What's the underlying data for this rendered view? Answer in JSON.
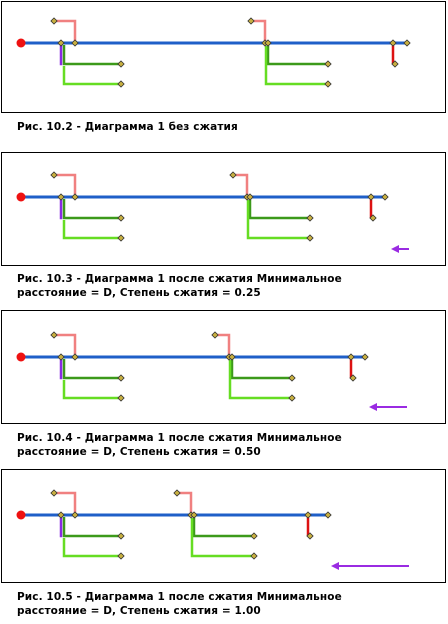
{
  "figures": [
    {
      "caption": "Рис. 10.2 - Диаграмма 1 без сжатия",
      "caption_lines": [
        "Рис. 10.2 - Диаграмма 1 без сжатия"
      ],
      "ratio": 0,
      "arrow": false
    },
    {
      "caption": "Рис. 10.3 - Диаграмма 1 после сжатия Минимальное расстояние = D, Степень сжатия = 0.25",
      "caption_lines": [
        "Рис. 10.3 - Диаграмма 1 после сжатия Минимальное",
        "расстояние = D, Степень сжатия = 0.25"
      ],
      "ratio": 0.25,
      "arrow": true
    },
    {
      "caption": "Рис. 10.4 - Диаграмма 1 после сжатия Минимальное расстояние = D, Степень сжатия = 0.50",
      "caption_lines": [
        "Рис. 10.4 - Диаграмма 1 после сжатия Минимальное",
        "расстояние = D, Степень сжатия = 0.50"
      ],
      "ratio": 0.5,
      "arrow": true
    },
    {
      "caption": "Рис. 10.5 - Диаграмма 1 после сжатия Минимальное расстояние = D, Степень сжатия = 1.00",
      "caption_lines": [
        "Рис. 10.5 - Диаграмма 1 после сжатия Минимальное",
        "расстояние = D, Степень сжатия = 1.00"
      ],
      "ratio": 1.0,
      "arrow": true
    }
  ],
  "colors": {
    "main_line": "#1f5fc8",
    "pink_branch": "#f08080",
    "purple_branch": "#8a2be2",
    "green_dark": "#3c9a1a",
    "green_light": "#66dd22",
    "red_branch": "#dd1111",
    "source_node": "#ee1111",
    "vertex": "#c8b040",
    "arrow": "#9a2be2"
  }
}
